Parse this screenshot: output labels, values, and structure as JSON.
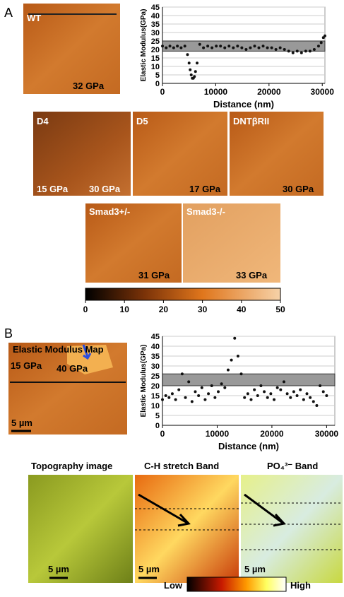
{
  "panel_labels": [
    "A",
    "B"
  ],
  "panel_a": {
    "images": [
      {
        "label": "WT",
        "annotations": [
          "32 GPa"
        ]
      },
      {
        "label": "D4",
        "annotations": [
          "15 GPa",
          "30 GPa"
        ]
      },
      {
        "label": "D5",
        "annotations": [
          "17 GPa"
        ]
      },
      {
        "label": "DNTβRII",
        "annotations": [
          "30 GPa"
        ]
      },
      {
        "label": "Smad3+/-",
        "annotations": [
          "31 GPa"
        ]
      },
      {
        "label": "Smad3-/-",
        "annotations": [
          "33 GPa"
        ]
      }
    ],
    "colorbar": {
      "lim": [
        0,
        50
      ],
      "ticks": [
        0,
        10,
        20,
        30,
        40,
        50
      ]
    }
  },
  "panel_b": {
    "map_title": "Elastic Modulus Map",
    "map_annotations": [
      "15 GPa",
      "40 GPa",
      "5 µm"
    ],
    "images": [
      {
        "title": "Topography image",
        "scale": "5 µm"
      },
      {
        "title": "C-H stretch Band",
        "scale": "5 µm"
      },
      {
        "title": "PO₄³⁻ Band",
        "scale": "5 µm"
      }
    ],
    "colorbar": {
      "low": "Low",
      "high": "High"
    }
  },
  "chart_data": [
    {
      "type": "scatter",
      "xlabel": "Distance (nm)",
      "ylabel": "Elastic Modulus(GPa)",
      "xlim": [
        0,
        30500
      ],
      "ylim": [
        0,
        45
      ],
      "xticks": [
        0,
        10000,
        20000,
        30000
      ],
      "yticks": [
        0,
        5,
        10,
        15,
        20,
        25,
        30,
        35,
        40,
        45
      ],
      "band": [
        19,
        25
      ],
      "grid": true,
      "series": [
        {
          "color": "#111111",
          "x": [
            0,
            700,
            1400,
            2100,
            2800,
            3500,
            4200,
            4700,
            5000,
            5200,
            5400,
            5600,
            5800,
            6000,
            6200,
            6500,
            7000,
            7700,
            8500,
            9300,
            10100,
            10900,
            11700,
            12500,
            13300,
            14100,
            14900,
            15700,
            16500,
            17300,
            18100,
            18900,
            19700,
            20500,
            21300,
            22100,
            22900,
            23700,
            24500,
            25300,
            26100,
            26900,
            27700,
            28500,
            29300,
            29800,
            30200,
            30500
          ],
          "values": [
            22,
            21,
            22,
            21,
            22,
            21,
            22,
            17,
            12,
            8,
            5,
            3,
            3,
            4,
            7,
            12,
            23,
            21,
            22,
            21,
            22,
            22,
            21,
            22,
            21,
            22,
            21,
            20,
            21,
            22,
            21,
            22,
            21,
            21,
            20,
            21,
            20,
            19,
            18,
            19,
            18,
            19,
            19,
            20,
            22,
            24,
            27,
            28
          ]
        }
      ]
    },
    {
      "type": "scatter",
      "xlabel": "Distance (nm)",
      "ylabel": "Elastic Modulus(GPa)",
      "xlim": [
        0,
        31500
      ],
      "ylim": [
        0,
        45
      ],
      "xticks": [
        0,
        10000,
        20000,
        30000
      ],
      "yticks": [
        0,
        5,
        10,
        15,
        20,
        25,
        30,
        35,
        40,
        45
      ],
      "band": [
        20,
        26
      ],
      "grid": true,
      "series": [
        {
          "color": "#111111",
          "x": [
            0,
            600,
            1200,
            1800,
            2400,
            3000,
            3600,
            4200,
            4800,
            5400,
            6000,
            6600,
            7200,
            7800,
            8400,
            9000,
            9600,
            10200,
            10800,
            11400,
            12000,
            12600,
            13200,
            13800,
            14400,
            15000,
            15600,
            16200,
            16800,
            17400,
            18000,
            18600,
            19200,
            19800,
            20400,
            21000,
            21600,
            22200,
            22800,
            23400,
            24000,
            24600,
            25200,
            25800,
            26400,
            27000,
            27600,
            28200,
            28800,
            29400,
            30000
          ],
          "values": [
            13,
            15,
            14,
            16,
            13,
            18,
            26,
            14,
            22,
            12,
            17,
            15,
            19,
            13,
            16,
            20,
            14,
            17,
            21,
            19,
            28,
            33,
            44,
            35,
            26,
            14,
            16,
            13,
            18,
            15,
            20,
            17,
            14,
            16,
            13,
            19,
            18,
            22,
            16,
            14,
            17,
            15,
            18,
            13,
            16,
            14,
            12,
            10,
            20,
            17,
            15
          ]
        }
      ]
    }
  ]
}
